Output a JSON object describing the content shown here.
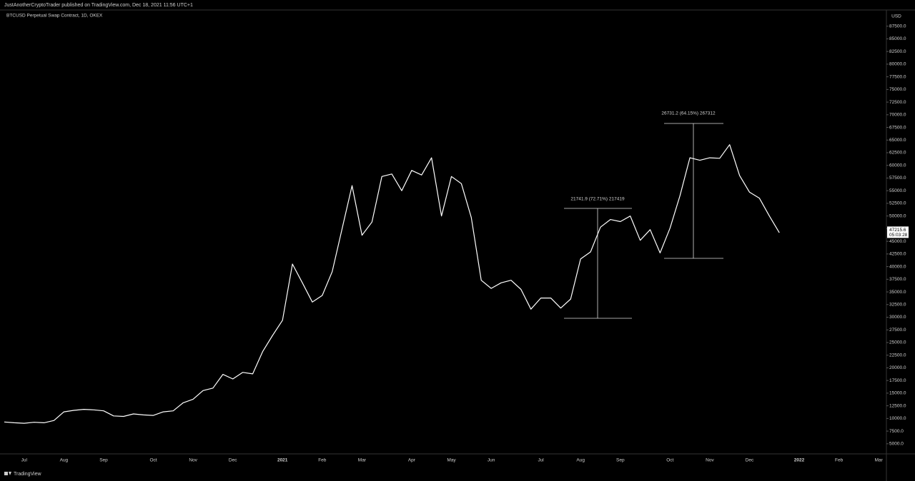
{
  "header": "JustAnotherCryptoTrader published on TradingView.com, Dec 18, 2021 11:56 UTC+1",
  "footer": "TradingView",
  "chart_data": {
    "type": "line",
    "title": "BTCUSD Perpetual Swap Contract, 1D, OKEX",
    "currency": "USD",
    "last_price": 47215.6,
    "countdown": "05:03:28",
    "annotations": [
      "21741.9 (72.71%) 217419",
      "26731.2 (64.15%) 267312"
    ],
    "color": "#ffffff",
    "categories": [
      null,
      null,
      "Jul",
      null,
      null,
      null,
      "Aug",
      null,
      null,
      null,
      "Sep",
      null,
      null,
      null,
      null,
      "Oct",
      null,
      null,
      null,
      "Nov",
      null,
      null,
      null,
      "Dec",
      null,
      null,
      null,
      null,
      "2021",
      null,
      null,
      null,
      "Feb",
      null,
      null,
      null,
      "Mar",
      null,
      null,
      null,
      null,
      "Apr",
      null,
      null,
      null,
      "May",
      null,
      null,
      null,
      "Jun",
      null,
      null,
      null,
      null,
      "Jul",
      null,
      null,
      null,
      "Aug",
      null,
      null,
      null,
      "Sep",
      null,
      null,
      null,
      null,
      "Oct",
      null,
      null,
      null,
      "Nov",
      null,
      null,
      null,
      "Dec",
      null,
      null,
      null,
      null,
      "2022",
      null,
      null,
      null,
      "Feb",
      null,
      null,
      null,
      "Mar",
      null
    ],
    "values": [
      9300,
      9150,
      9050,
      9250,
      9150,
      9600,
      11300,
      11600,
      11800,
      11700,
      11500,
      10500,
      10400,
      10900,
      10700,
      10600,
      11300,
      11500,
      13100,
      13800,
      15500,
      16000,
      18700,
      17800,
      19100,
      18800,
      23200,
      26400,
      29400,
      40500,
      36800,
      33000,
      34300,
      39000,
      47500,
      56000,
      46200,
      48800,
      57800,
      58300,
      55000,
      59000,
      58100,
      61500,
      50000,
      57800,
      56400,
      49700,
      37300,
      35700,
      36800,
      37300,
      35500,
      31600,
      33800,
      33800,
      31800,
      33600,
      41500,
      42900,
      47800,
      49300,
      48900,
      50000,
      45200,
      47300,
      42700,
      47600,
      54000,
      61500,
      61000,
      61500,
      61400,
      64100,
      58000,
      54700,
      53500,
      50000,
      46700,
      null,
      null,
      null,
      null,
      null,
      null,
      null,
      null,
      null,
      null,
      null
    ],
    "ylim": [
      3000,
      90700
    ],
    "yticks": [
      {
        "value": 5000,
        "label": "5000.0"
      },
      {
        "value": 7500,
        "label": "7500.0"
      },
      {
        "value": 10000,
        "label": "10000.0"
      },
      {
        "value": 12500,
        "label": "12500.0"
      },
      {
        "value": 15000,
        "label": "15000.0"
      },
      {
        "value": 17500,
        "label": "17500.0"
      },
      {
        "value": 20000,
        "label": "20000.0"
      },
      {
        "value": 22500,
        "label": "22500.0"
      },
      {
        "value": 25000,
        "label": "25000.0"
      },
      {
        "value": 27500,
        "label": "27500.0"
      },
      {
        "value": 30000,
        "label": "30000.0"
      },
      {
        "value": 32500,
        "label": "32500.0"
      },
      {
        "value": 35000,
        "label": "35000.0"
      },
      {
        "value": 37500,
        "label": "37500.0"
      },
      {
        "value": 40000,
        "label": "40000.0"
      },
      {
        "value": 42500,
        "label": "42500.0"
      },
      {
        "value": 45000,
        "label": "45000.0"
      },
      {
        "value": 47500,
        "label": "47500.0"
      },
      {
        "value": 50000,
        "label": "50000.0"
      },
      {
        "value": 52500,
        "label": "52500.0"
      },
      {
        "value": 55000,
        "label": "55000.0"
      },
      {
        "value": 57500,
        "label": "57500.0"
      },
      {
        "value": 60000,
        "label": "60000.0"
      },
      {
        "value": 62500,
        "label": "62500.0"
      },
      {
        "value": 65000,
        "label": "65000.0"
      },
      {
        "value": 67500,
        "label": "67500.0"
      },
      {
        "value": 70000,
        "label": "70000.0"
      },
      {
        "value": 72500,
        "label": "72500.0"
      },
      {
        "value": 75000,
        "label": "75000.0"
      },
      {
        "value": 77500,
        "label": "77500.0"
      },
      {
        "value": 80000,
        "label": "80000.0"
      },
      {
        "value": 82500,
        "label": "82500.0"
      },
      {
        "value": 85000,
        "label": "85000.0"
      },
      {
        "value": 87500,
        "label": "87500.0"
      }
    ]
  }
}
